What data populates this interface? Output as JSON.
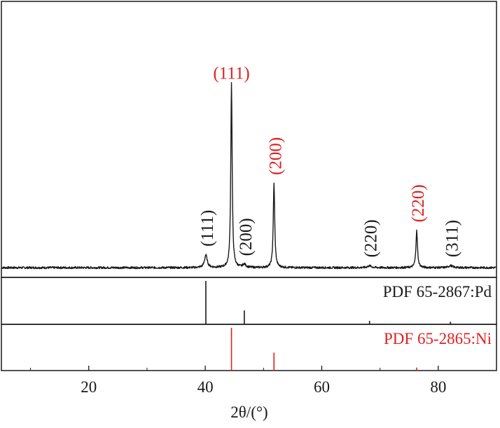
{
  "chart_data": {
    "type": "line",
    "xlabel": "2θ/(°)",
    "xlim": [
      5,
      90
    ],
    "x_ticks": [
      20,
      40,
      60,
      80
    ],
    "grid": false,
    "colors": {
      "pd": "#1a1a1a",
      "ni": "#e02020"
    },
    "main_panel": {
      "series": {
        "name": "",
        "baseline": 1.0,
        "peaks": [
          {
            "x": 40.1,
            "height": 5.5,
            "width": 0.55
          },
          {
            "x": 44.5,
            "height": 80.0,
            "width": 0.28
          },
          {
            "x": 46.7,
            "height": 1.4,
            "width": 0.6
          },
          {
            "x": 51.8,
            "height": 36.5,
            "width": 0.3
          },
          {
            "x": 68.2,
            "height": 0.8,
            "width": 0.8
          },
          {
            "x": 76.3,
            "height": 16.0,
            "width": 0.32
          },
          {
            "x": 82.1,
            "height": 0.9,
            "width": 0.8
          }
        ],
        "ylim": [
          -2,
          100
        ]
      },
      "annotations": [
        {
          "text": "(111)",
          "x": 40.1,
          "rotated": true,
          "color": "#1a1a1a"
        },
        {
          "text": "(111)",
          "x": 44.5,
          "rotated": false,
          "color": "#e02020"
        },
        {
          "text": "(200)",
          "x": 46.7,
          "rotated": true,
          "color": "#1a1a1a"
        },
        {
          "text": "(200)",
          "x": 51.8,
          "rotated": true,
          "color": "#e02020"
        },
        {
          "text": "(220)",
          "x": 68.2,
          "rotated": true,
          "color": "#1a1a1a"
        },
        {
          "text": "(220)",
          "x": 76.3,
          "rotated": true,
          "color": "#e02020"
        },
        {
          "text": "(311)",
          "x": 82.1,
          "rotated": true,
          "color": "#1a1a1a"
        }
      ]
    },
    "reference_panels": [
      {
        "label": "PDF 65-2867:Pd",
        "color": "#1a1a1a",
        "lines": [
          {
            "x": 40.1,
            "intensity": 100
          },
          {
            "x": 46.7,
            "intensity": 32
          },
          {
            "x": 68.2,
            "intensity": 8
          },
          {
            "x": 82.1,
            "intensity": 6
          }
        ]
      },
      {
        "label": "PDF 65-2865:Ni",
        "color": "#e02020",
        "lines": [
          {
            "x": 44.5,
            "intensity": 100
          },
          {
            "x": 51.8,
            "intensity": 42
          },
          {
            "x": 76.3,
            "intensity": 7
          }
        ]
      }
    ]
  }
}
